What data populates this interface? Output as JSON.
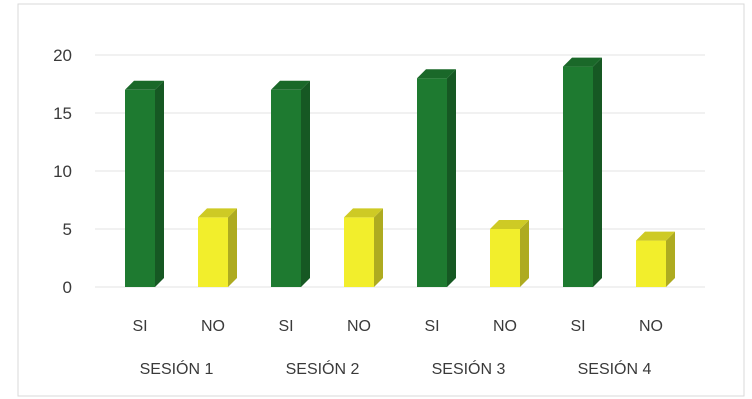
{
  "chart_data": {
    "type": "bar",
    "title": "",
    "xlabel": "",
    "ylabel": "",
    "ylim": [
      0,
      20
    ],
    "yticks": [
      0,
      5,
      10,
      15,
      20
    ],
    "grid": true,
    "legend": "none",
    "sessions": [
      "SESIÓN 1",
      "SESIÓN 2",
      "SESIÓN 3",
      "SESIÓN 4"
    ],
    "categories": [
      "SI",
      "NO",
      "SI",
      "NO",
      "SI",
      "NO",
      "SI",
      "NO"
    ],
    "values": [
      17,
      6,
      17,
      6,
      18,
      5,
      19,
      4
    ],
    "colors": {
      "SI": "#1e7a30",
      "NO": "#f2ee2c"
    }
  }
}
